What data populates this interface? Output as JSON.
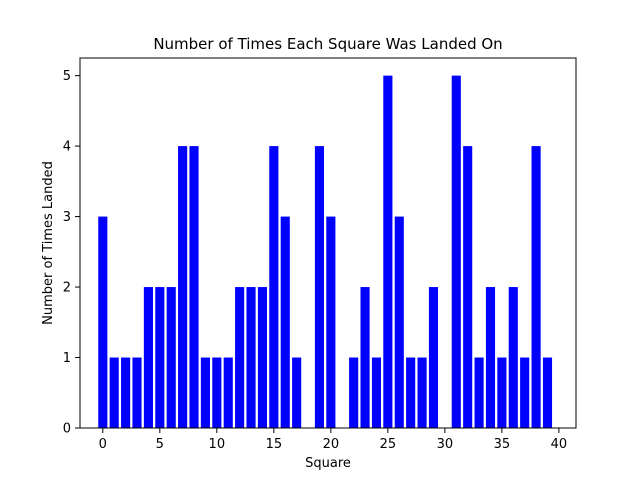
{
  "chart_data": {
    "type": "bar",
    "title": "Number of Times Each Square Was Landed On",
    "xlabel": "Square",
    "ylabel": "Number of Times Landed",
    "x": [
      0,
      1,
      2,
      3,
      4,
      5,
      6,
      7,
      8,
      9,
      10,
      11,
      12,
      13,
      14,
      15,
      16,
      17,
      18,
      19,
      20,
      21,
      22,
      23,
      24,
      25,
      26,
      27,
      28,
      29,
      30,
      31,
      32,
      33,
      34,
      35,
      36,
      37,
      38,
      39
    ],
    "values": [
      3,
      1,
      1,
      1,
      2,
      2,
      2,
      4,
      4,
      1,
      1,
      1,
      2,
      2,
      2,
      4,
      3,
      1,
      0,
      4,
      3,
      0,
      1,
      2,
      1,
      5,
      3,
      1,
      1,
      2,
      0,
      5,
      4,
      1,
      2,
      1,
      2,
      1,
      4,
      1
    ],
    "xlim": [
      -2,
      41.5
    ],
    "ylim": [
      0,
      5.25
    ],
    "xticks": [
      0,
      5,
      10,
      15,
      20,
      25,
      30,
      35,
      40
    ],
    "xtick_labels": [
      "0",
      "5",
      "10",
      "15",
      "20",
      "25",
      "30",
      "35",
      "40"
    ],
    "yticks": [
      0,
      1,
      2,
      3,
      4,
      5
    ],
    "ytick_labels": [
      "0",
      "1",
      "2",
      "3",
      "4",
      "5"
    ],
    "bar_color": "#0000ff",
    "grid": false
  }
}
